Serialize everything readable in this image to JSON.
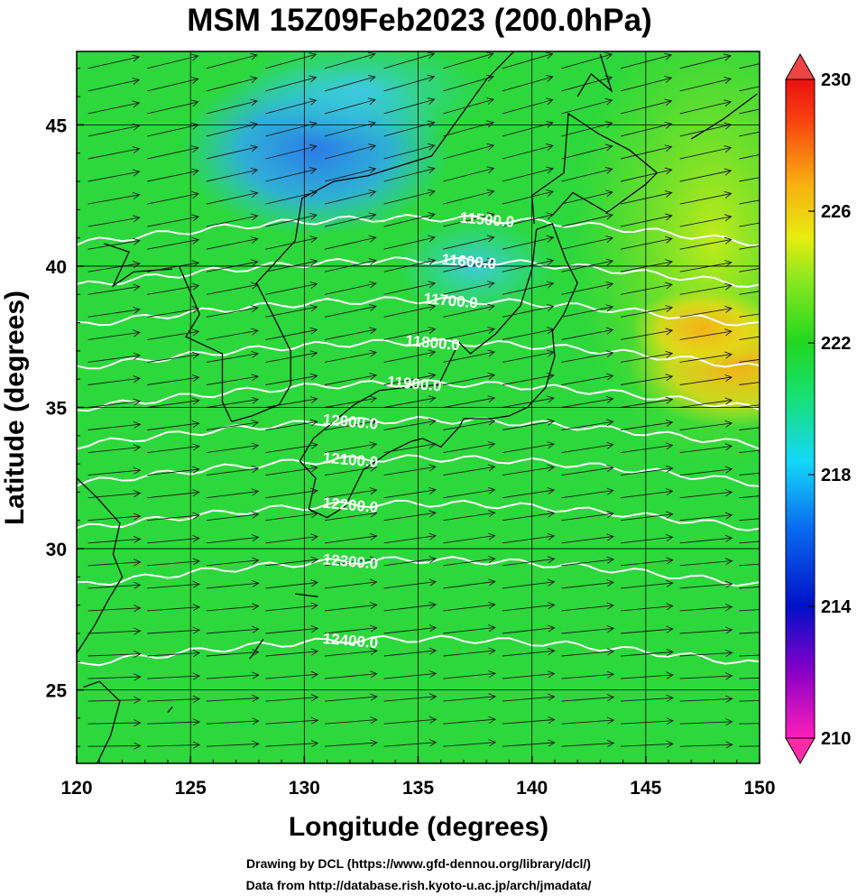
{
  "chart_data": {
    "type": "heatmap",
    "title": "MSM 15Z09Feb2023 (200.0hPa)",
    "xlabel": "Longitude (degrees)",
    "ylabel": "Latitude  (degrees)",
    "xlim": [
      120,
      150
    ],
    "ylim": [
      22.4,
      47.6
    ],
    "x_ticks": [
      "120",
      "125",
      "130",
      "135",
      "140",
      "145",
      "150"
    ],
    "y_ticks": [
      "25",
      "30",
      "35",
      "40",
      "45"
    ],
    "colorbar": {
      "range": [
        210,
        230
      ],
      "ticks": [
        "230",
        "226",
        "222",
        "218",
        "214",
        "210"
      ],
      "colors": [
        "#ff1fb8",
        "#8a00c8",
        "#0010c8",
        "#0a6cf0",
        "#14d8f8",
        "#18e070",
        "#20d820",
        "#90e820",
        "#e8ec10",
        "#f8b010",
        "#f84010",
        "#e81010"
      ]
    },
    "contours": [
      {
        "label": "11500.0",
        "lat": 41.4
      },
      {
        "label": "11600.0",
        "lat": 39.9
      },
      {
        "label": "11700.0",
        "lat": 38.5
      },
      {
        "label": "11800.0",
        "lat": 37.0
      },
      {
        "label": "11900.0",
        "lat": 35.55
      },
      {
        "label": "12000.0",
        "lat": 34.25
      },
      {
        "label": "12100.0",
        "lat": 32.9
      },
      {
        "label": "12200.0",
        "lat": 31.3
      },
      {
        "label": "12300.0",
        "lat": 29.3
      },
      {
        "label": "12400.0",
        "lat": 26.5
      }
    ],
    "field_features": [
      {
        "lon": 130.5,
        "lat": 44.1,
        "value": 216
      },
      {
        "lon": 132.5,
        "lat": 46.2,
        "value": 217
      },
      {
        "lon": 137.5,
        "lat": 40.0,
        "value": 219
      },
      {
        "lon": 148.0,
        "lat": 41.0,
        "value": 226
      },
      {
        "lon": 149.0,
        "lat": 36.5,
        "value": 228
      },
      {
        "lon": 147.5,
        "lat": 37.8,
        "value": 226
      }
    ]
  },
  "credits": [
    "Drawing by DCL (https://www.gfd-dennou.org/library/dcl/)",
    "Data from http://database.rish.kyoto-u.ac.jp/arch/jmadata/"
  ]
}
